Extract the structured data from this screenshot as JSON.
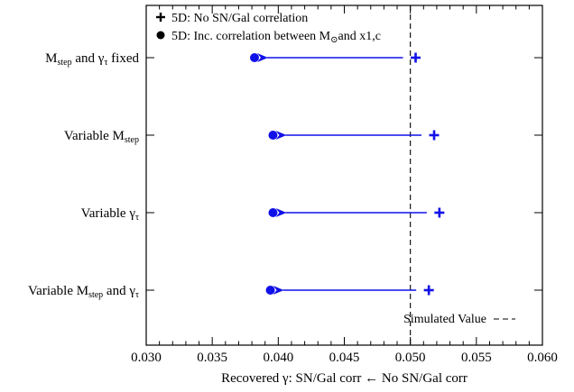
{
  "chart_data": {
    "type": "scatter",
    "xlabel": "Recovered γ: SN/Gal corr ← No SN/Gal corr",
    "xlim": [
      0.03,
      0.06
    ],
    "xticks": [
      "0.030",
      "0.035",
      "0.040",
      "0.045",
      "0.050",
      "0.055",
      "0.060"
    ],
    "grid": false,
    "categories": [
      "Mstep and γτ fixed",
      "Variable Mstep",
      "Variable γτ",
      "Variable Mstep and γτ"
    ],
    "category_labels": [
      [
        {
          "t": "M"
        },
        {
          "t": "step",
          "s": "sub"
        },
        {
          "t": " and γ"
        },
        {
          "t": "τ",
          "s": "sub"
        },
        {
          "t": " fixed"
        }
      ],
      [
        {
          "t": "Variable M"
        },
        {
          "t": "step",
          "s": "sub"
        }
      ],
      [
        {
          "t": "Variable γ"
        },
        {
          "t": "τ",
          "s": "sub"
        }
      ],
      [
        {
          "t": "Variable M"
        },
        {
          "t": "step",
          "s": "sub"
        },
        {
          "t": " and γ"
        },
        {
          "t": "τ",
          "s": "sub"
        }
      ]
    ],
    "series": [
      {
        "name": "5D: No SN/Gal correlation",
        "marker": "plus",
        "values": [
          0.0504,
          0.0518,
          0.0522,
          0.0514
        ]
      },
      {
        "name": "5D: Inc. correlation between M⊙and x1,c",
        "marker": "circle",
        "values": [
          0.0382,
          0.0396,
          0.0396,
          0.0394
        ]
      }
    ],
    "legend": {
      "position": "top-left",
      "items": [
        [
          {
            "t": "5D: No SN/Gal correlation"
          }
        ],
        [
          {
            "t": "5D: Inc. correlation between M"
          },
          {
            "t": "⊙",
            "s": "sub"
          },
          {
            "t": "and x1,c"
          }
        ]
      ]
    },
    "reference_line": {
      "value": 0.05,
      "label": "Simulated Value",
      "style": "dashed"
    },
    "colors": {
      "marker": "#1010e8",
      "reference": "#000000"
    }
  }
}
